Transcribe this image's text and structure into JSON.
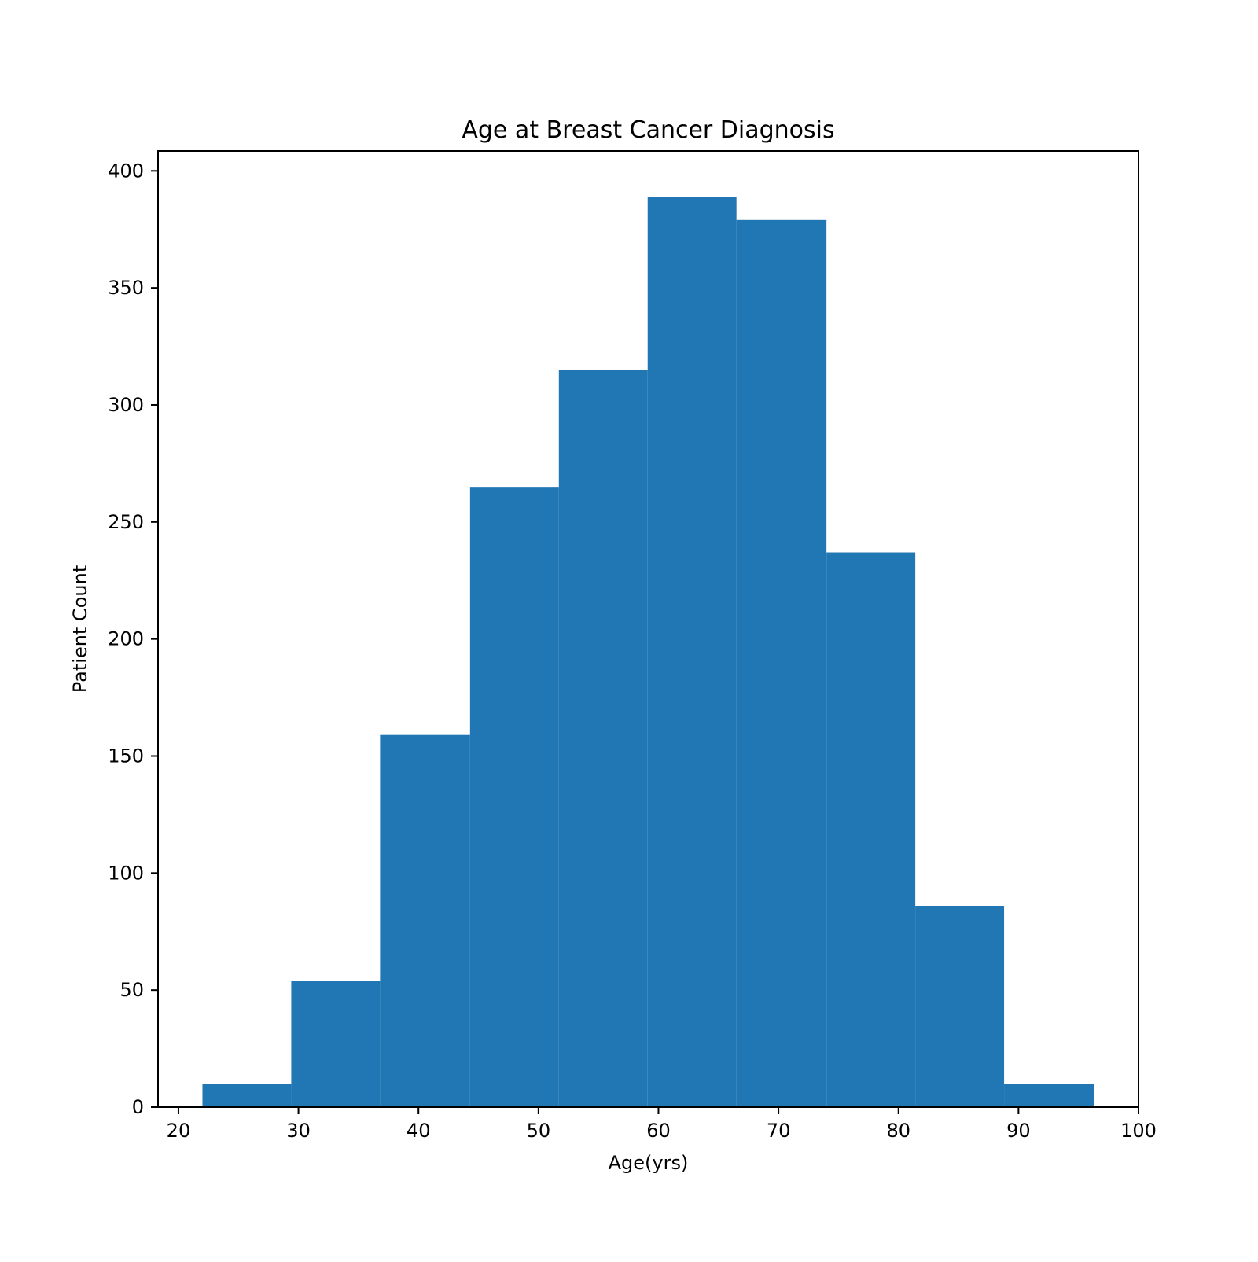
{
  "chart_data": {
    "type": "bar",
    "subtype": "histogram",
    "title": "Age at Breast Cancer Diagnosis",
    "xlabel": "Age(yrs)",
    "ylabel": "Patient Count",
    "xlim": [
      18.3,
      100
    ],
    "ylim": [
      0,
      408.5
    ],
    "xticks": [
      20,
      30,
      40,
      50,
      60,
      70,
      80,
      90,
      100
    ],
    "yticks": [
      0,
      50,
      100,
      150,
      200,
      250,
      300,
      350,
      400
    ],
    "bin_edges": [
      22.0,
      29.4,
      36.8,
      44.3,
      51.7,
      59.1,
      66.5,
      74.0,
      81.4,
      88.8,
      96.3
    ],
    "values": [
      10,
      54,
      159,
      265,
      315,
      389,
      379,
      237,
      86,
      10
    ],
    "series_name": "Age",
    "grid": false,
    "legend": "none"
  },
  "colors": {
    "bar": "#2077b4",
    "axes": "#000000",
    "background": "#ffffff"
  }
}
